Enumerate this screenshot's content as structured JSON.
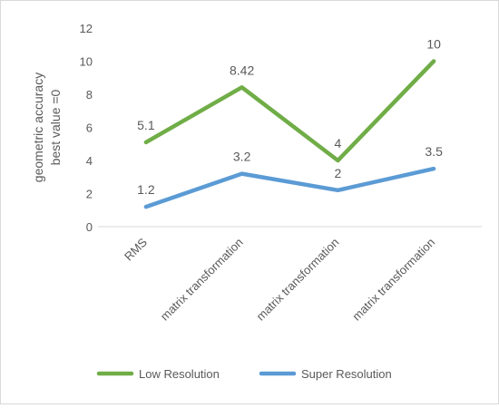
{
  "chart_data": {
    "type": "line",
    "categories": [
      "RMS",
      "matrix transformation",
      "matrix transformation",
      "matrix transformation"
    ],
    "ylabel_lines": [
      "geometric accuracy",
      "best value =0"
    ],
    "ylim": [
      0,
      12
    ],
    "yticks": [
      0,
      2,
      4,
      6,
      8,
      10,
      12
    ],
    "grid": false,
    "legend_position": "bottom",
    "series": [
      {
        "name": "Low Resolution",
        "color": "#70ad47",
        "values": [
          5.1,
          8.42,
          4,
          10
        ],
        "labels": [
          "5.1",
          "8.42",
          "4",
          "10"
        ]
      },
      {
        "name": "Super Resolution",
        "color": "#5b9bd5",
        "values": [
          1.2,
          3.2,
          2.2,
          3.5
        ],
        "labels": [
          "1.2",
          "3.2",
          "2",
          "3.5"
        ]
      }
    ]
  }
}
